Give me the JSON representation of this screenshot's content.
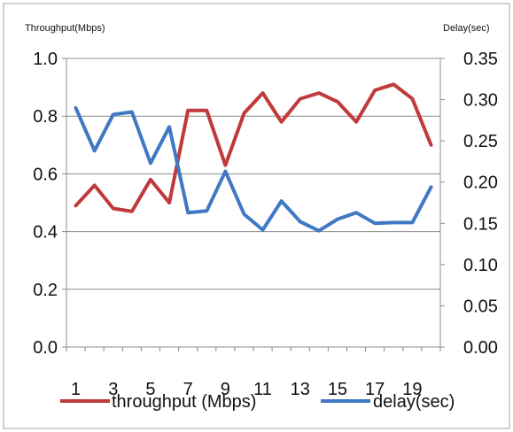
{
  "chart_data": {
    "type": "line",
    "title": "",
    "ylabel_left": "Throughput(Mbps)",
    "ylabel_right": "Delay(sec)",
    "x": [
      1,
      2,
      3,
      4,
      5,
      6,
      7,
      8,
      9,
      10,
      11,
      12,
      13,
      14,
      15,
      16,
      17,
      18,
      19,
      20
    ],
    "x_tick_labels": [
      "1",
      "3",
      "5",
      "7",
      "9",
      "11",
      "13",
      "15",
      "17",
      "19"
    ],
    "y_left_ticks": [
      "0.0",
      "0.2",
      "0.4",
      "0.6",
      "0.8",
      "1.0"
    ],
    "y_right_ticks": [
      "0.00",
      "0.05",
      "0.10",
      "0.15",
      "0.20",
      "0.25",
      "0.30",
      "0.35"
    ],
    "ylim_left": [
      0,
      1.0
    ],
    "ylim_right": [
      0,
      0.35
    ],
    "grid": "horizontal",
    "legend_position": "bottom",
    "colors": {
      "throughput": "#c0393b",
      "delay": "#3f78c4",
      "grid": "#8c8c8c",
      "frame": "#bfbfbf"
    },
    "series": [
      {
        "name": "throughput (Mbps)",
        "axis": "left",
        "values": [
          0.49,
          0.56,
          0.48,
          0.47,
          0.58,
          0.5,
          0.82,
          0.82,
          0.63,
          0.81,
          0.88,
          0.78,
          0.86,
          0.88,
          0.85,
          0.78,
          0.89,
          0.91,
          0.86,
          0.7
        ]
      },
      {
        "name": "delay(sec)",
        "axis": "right",
        "values": [
          0.29,
          0.238,
          0.282,
          0.285,
          0.223,
          0.267,
          0.163,
          0.165,
          0.213,
          0.161,
          0.142,
          0.177,
          0.152,
          0.141,
          0.155,
          0.163,
          0.15,
          0.151,
          0.151,
          0.194
        ]
      }
    ]
  }
}
